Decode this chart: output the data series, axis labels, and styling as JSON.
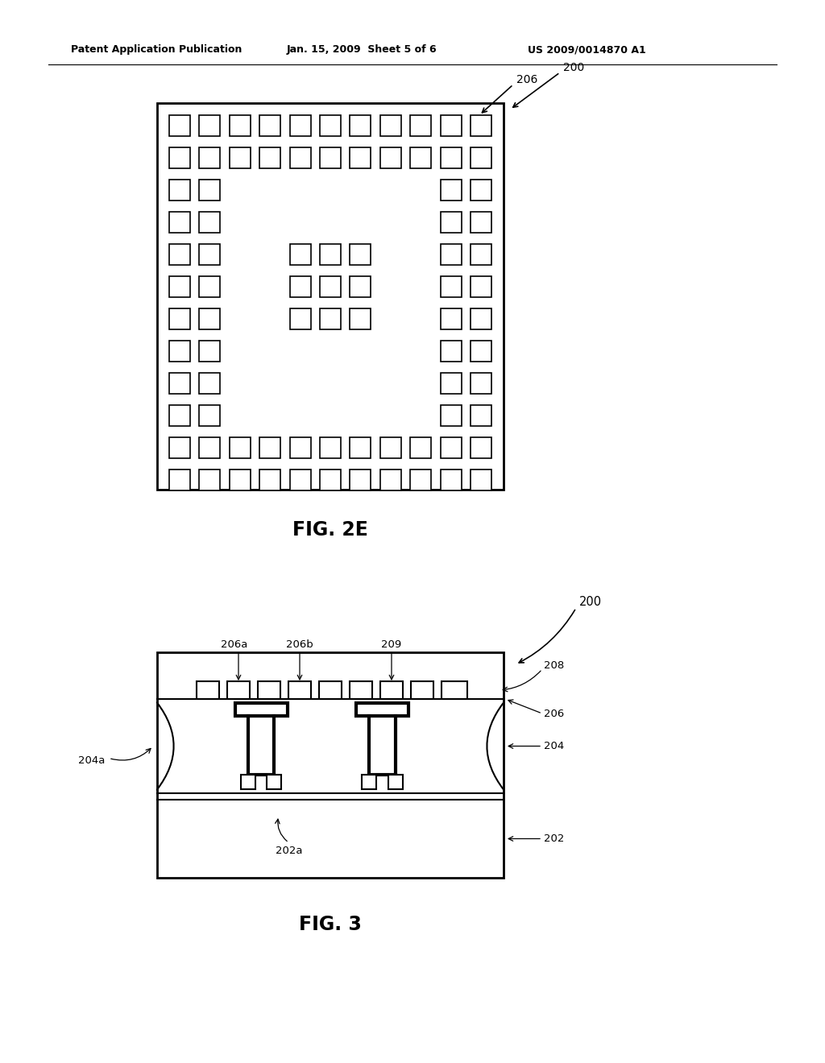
{
  "header_left": "Patent Application Publication",
  "header_mid": "Jan. 15, 2009  Sheet 5 of 6",
  "header_right": "US 2009/0014870 A1",
  "fig2e_label": "FIG. 2E",
  "fig3_label": "FIG. 3",
  "bg_color": "#ffffff",
  "line_color": "#000000",
  "label_200_top": "200",
  "label_206_top": "206",
  "label_200_bot": "200",
  "label_206a": "206a",
  "label_206b": "206b",
  "label_209": "209",
  "label_208": "208",
  "label_206": "206",
  "label_204a": "204a",
  "label_204": "204",
  "label_202a": "202a",
  "label_202": "202"
}
